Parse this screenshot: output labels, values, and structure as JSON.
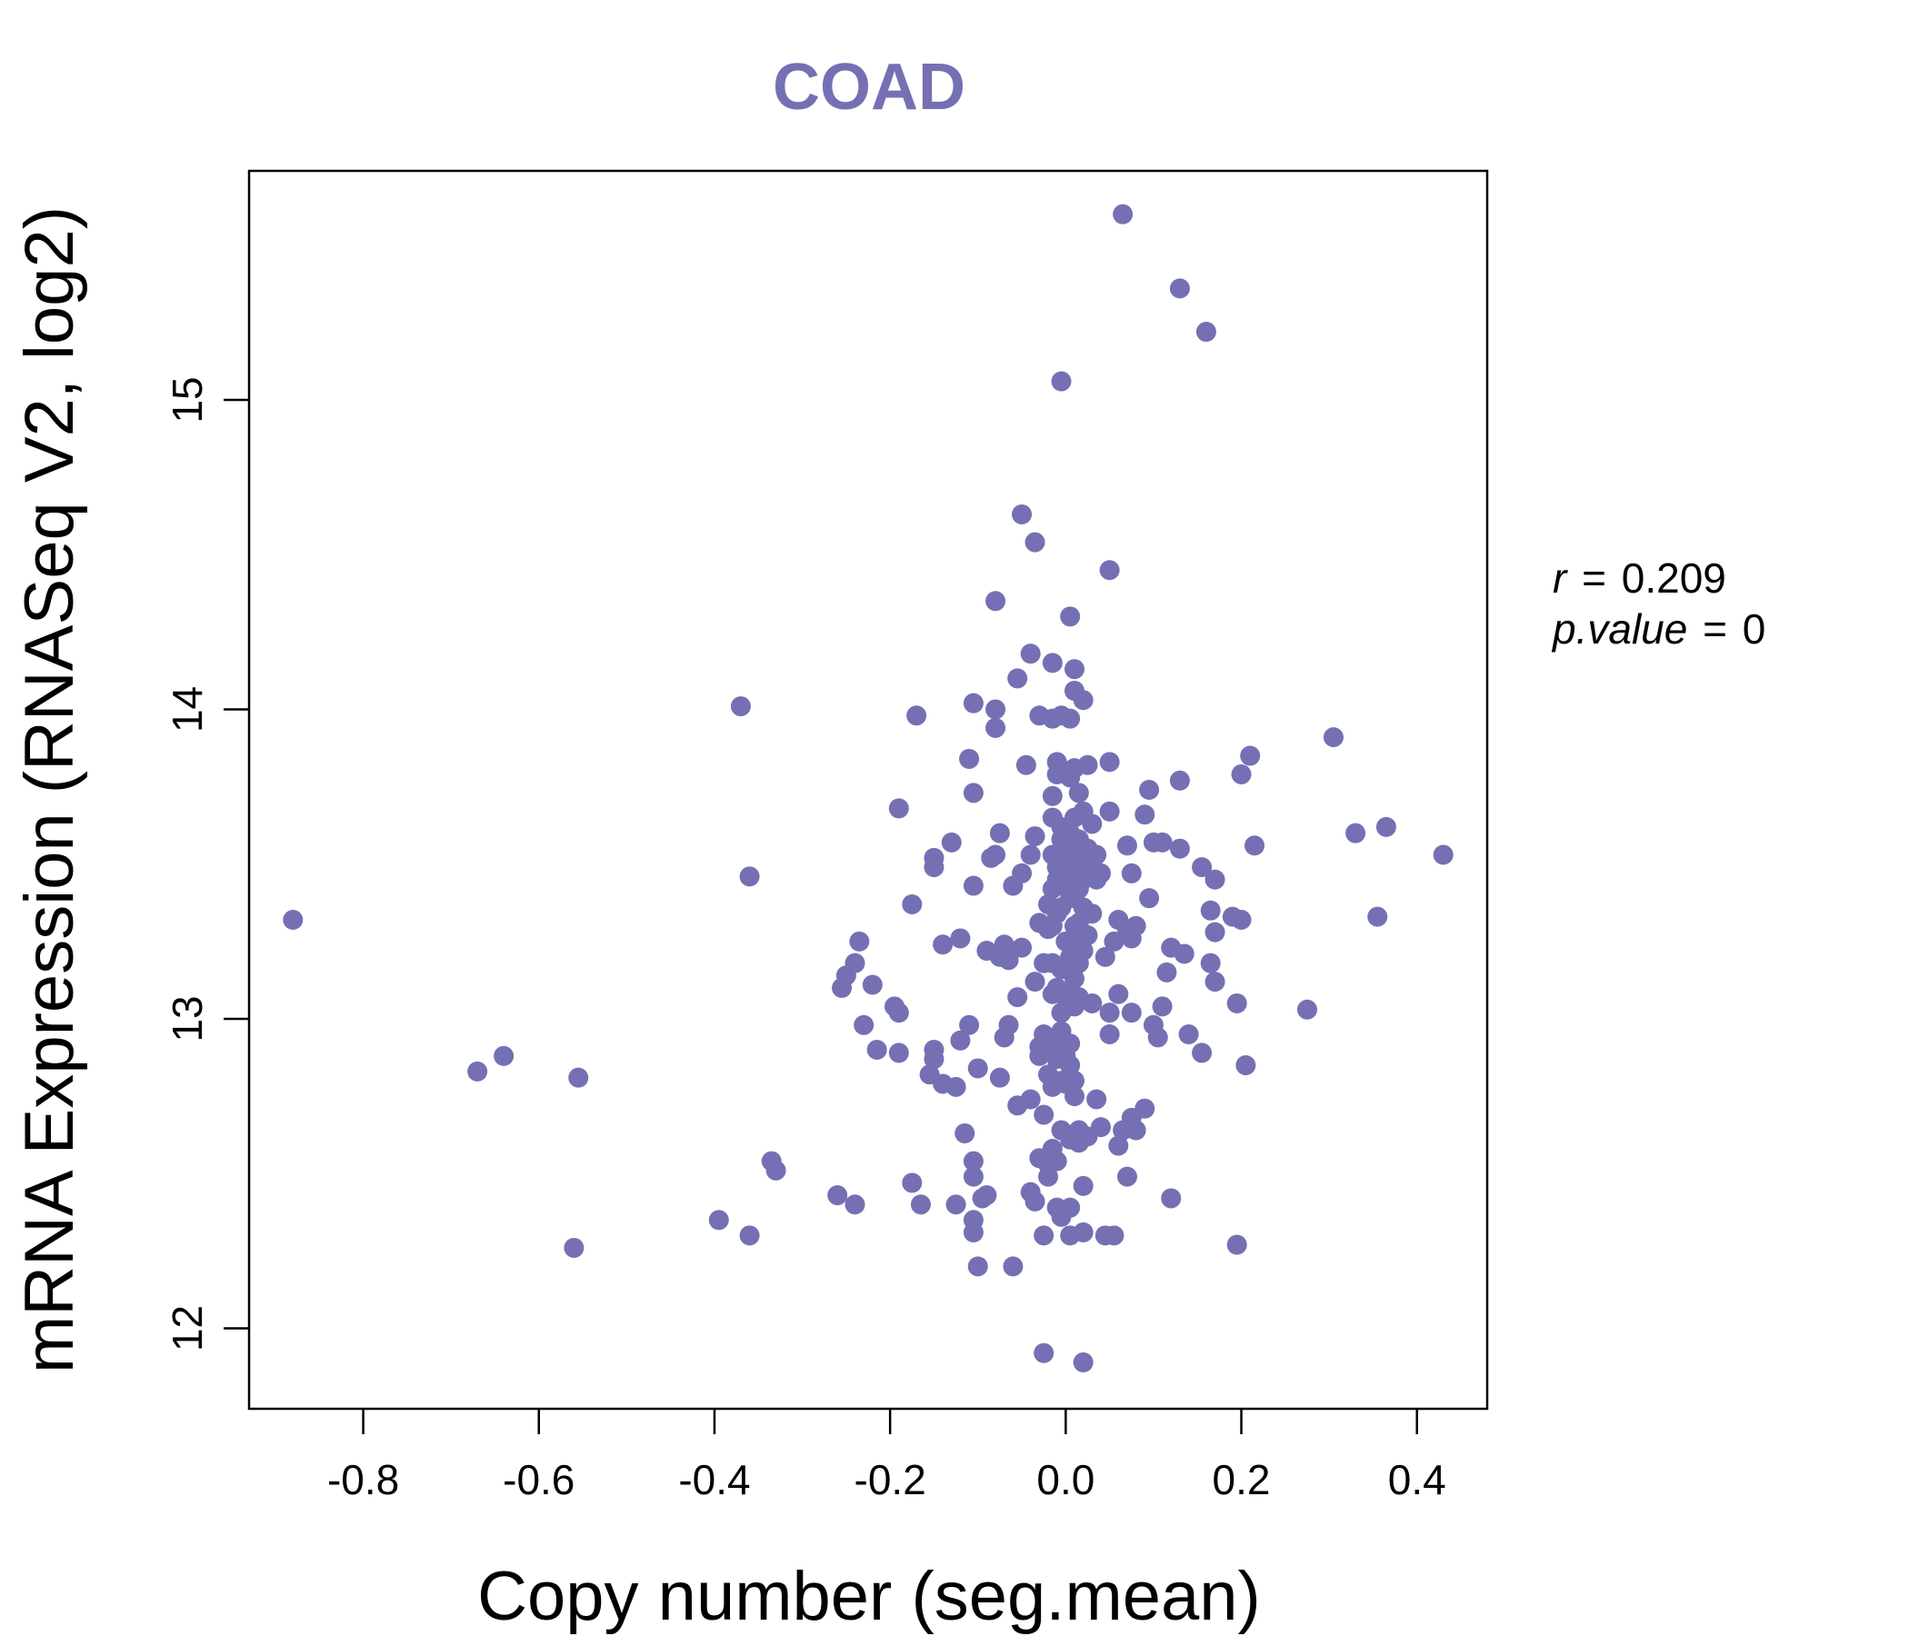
{
  "chart_data": {
    "type": "scatter",
    "title": "COAD",
    "xlabel": "Copy number (seg.mean)",
    "ylabel": "mRNA Expression (RNASeq V2, log2)",
    "xlim": [
      -0.93,
      0.48
    ],
    "ylim": [
      11.74,
      15.74
    ],
    "xticks": [
      -0.8,
      -0.6,
      -0.4,
      -0.2,
      0.0,
      0.2,
      0.4
    ],
    "xtick_labels": [
      "-0.8",
      "-0.6",
      "-0.4",
      "-0.2",
      "0.0",
      "0.2",
      "0.4"
    ],
    "yticks": [
      12,
      13,
      14,
      15
    ],
    "ytick_labels": [
      "12",
      "13",
      "14",
      "15"
    ],
    "grid": false,
    "point_color": "#7570b3",
    "stats": {
      "r_label": "r",
      "r_value": "0.209",
      "p_label": "p.value",
      "p_value": "0",
      "eq": "="
    },
    "points": [
      [
        -0.88,
        13.32
      ],
      [
        -0.67,
        12.83
      ],
      [
        -0.64,
        12.88
      ],
      [
        -0.555,
        12.81
      ],
      [
        -0.56,
        12.26
      ],
      [
        -0.37,
        14.01
      ],
      [
        -0.36,
        13.46
      ],
      [
        -0.395,
        12.35
      ],
      [
        -0.36,
        12.3
      ],
      [
        -0.335,
        12.54
      ],
      [
        -0.33,
        12.51
      ],
      [
        -0.26,
        12.43
      ],
      [
        -0.24,
        12.4
      ],
      [
        -0.255,
        13.1
      ],
      [
        -0.25,
        13.14
      ],
      [
        -0.24,
        13.18
      ],
      [
        -0.235,
        13.25
      ],
      [
        -0.22,
        13.11
      ],
      [
        -0.23,
        12.98
      ],
      [
        -0.215,
        12.9
      ],
      [
        -0.195,
        13.04
      ],
      [
        -0.19,
        13.02
      ],
      [
        -0.19,
        12.89
      ],
      [
        -0.19,
        13.68
      ],
      [
        -0.17,
        13.98
      ],
      [
        -0.175,
        13.37
      ],
      [
        -0.175,
        12.47
      ],
      [
        -0.165,
        12.4
      ],
      [
        -0.155,
        12.82
      ],
      [
        -0.15,
        12.87
      ],
      [
        -0.15,
        12.9
      ],
      [
        -0.14,
        12.79
      ],
      [
        -0.14,
        13.24
      ],
      [
        -0.15,
        13.49
      ],
      [
        -0.15,
        13.52
      ],
      [
        -0.13,
        13.57
      ],
      [
        -0.125,
        12.78
      ],
      [
        -0.125,
        12.4
      ],
      [
        -0.12,
        12.93
      ],
      [
        -0.12,
        13.26
      ],
      [
        -0.115,
        12.63
      ],
      [
        -0.11,
        12.98
      ],
      [
        -0.11,
        13.84
      ],
      [
        -0.105,
        14.02
      ],
      [
        -0.105,
        13.73
      ],
      [
        -0.105,
        13.43
      ],
      [
        -0.1,
        12.84
      ],
      [
        -0.105,
        12.54
      ],
      [
        -0.105,
        12.49
      ],
      [
        -0.105,
        12.35
      ],
      [
        -0.105,
        12.31
      ],
      [
        -0.1,
        12.2
      ],
      [
        -0.095,
        12.42
      ],
      [
        -0.09,
        12.43
      ],
      [
        -0.09,
        13.22
      ],
      [
        -0.085,
        13.52
      ],
      [
        -0.08,
        13.53
      ],
      [
        -0.08,
        14.0
      ],
      [
        -0.08,
        13.94
      ],
      [
        -0.08,
        14.35
      ],
      [
        -0.075,
        13.6
      ],
      [
        -0.075,
        13.2
      ],
      [
        -0.07,
        13.24
      ],
      [
        -0.065,
        13.19
      ],
      [
        -0.065,
        12.98
      ],
      [
        -0.07,
        12.94
      ],
      [
        -0.075,
        12.81
      ],
      [
        -0.06,
        13.43
      ],
      [
        -0.06,
        12.2
      ],
      [
        -0.055,
        14.1
      ],
      [
        -0.055,
        13.07
      ],
      [
        -0.055,
        12.72
      ],
      [
        -0.05,
        13.23
      ],
      [
        -0.05,
        13.47
      ],
      [
        -0.05,
        14.63
      ],
      [
        -0.045,
        13.82
      ],
      [
        -0.04,
        14.18
      ],
      [
        -0.04,
        13.53
      ],
      [
        -0.04,
        12.74
      ],
      [
        -0.04,
        12.44
      ],
      [
        -0.035,
        12.41
      ],
      [
        -0.035,
        13.12
      ],
      [
        -0.035,
        13.59
      ],
      [
        -0.035,
        14.54
      ],
      [
        -0.03,
        13.98
      ],
      [
        -0.03,
        12.91
      ],
      [
        -0.03,
        12.88
      ],
      [
        -0.03,
        12.55
      ],
      [
        -0.03,
        13.31
      ],
      [
        -0.025,
        13.18
      ],
      [
        -0.025,
        12.95
      ],
      [
        -0.025,
        12.69
      ],
      [
        -0.025,
        12.3
      ],
      [
        -0.025,
        11.92
      ],
      [
        -0.02,
        13.29
      ],
      [
        -0.02,
        13.37
      ],
      [
        -0.02,
        12.82
      ],
      [
        -0.02,
        12.49
      ],
      [
        -0.02,
        12.53
      ],
      [
        -0.015,
        14.15
      ],
      [
        -0.015,
        13.97
      ],
      [
        -0.015,
        13.72
      ],
      [
        -0.015,
        13.65
      ],
      [
        -0.015,
        13.53
      ],
      [
        -0.015,
        13.42
      ],
      [
        -0.015,
        13.3
      ],
      [
        -0.015,
        13.18
      ],
      [
        -0.015,
        13.08
      ],
      [
        -0.015,
        12.91
      ],
      [
        -0.015,
        12.78
      ],
      [
        -0.015,
        12.58
      ],
      [
        -0.01,
        13.83
      ],
      [
        -0.01,
        13.79
      ],
      [
        -0.01,
        13.53
      ],
      [
        -0.01,
        13.49
      ],
      [
        -0.01,
        13.45
      ],
      [
        -0.01,
        13.34
      ],
      [
        -0.01,
        13.1
      ],
      [
        -0.01,
        12.87
      ],
      [
        -0.01,
        12.54
      ],
      [
        -0.01,
        12.39
      ],
      [
        -0.005,
        13.98
      ],
      [
        -0.005,
        13.62
      ],
      [
        -0.005,
        13.58
      ],
      [
        -0.005,
        13.44
      ],
      [
        -0.005,
        13.36
      ],
      [
        -0.005,
        13.16
      ],
      [
        -0.005,
        13.02
      ],
      [
        -0.005,
        12.96
      ],
      [
        -0.005,
        12.8
      ],
      [
        -0.005,
        12.64
      ],
      [
        -0.005,
        12.36
      ],
      [
        -0.005,
        15.06
      ],
      [
        0.0,
        13.8
      ],
      [
        0.0,
        13.55
      ],
      [
        0.0,
        13.47
      ],
      [
        0.0,
        13.43
      ],
      [
        0.0,
        13.25
      ],
      [
        0.0,
        13.07
      ],
      [
        0.0,
        12.88
      ],
      [
        0.0,
        12.79
      ],
      [
        0.005,
        14.3
      ],
      [
        0.005,
        13.97
      ],
      [
        0.005,
        13.78
      ],
      [
        0.005,
        13.6
      ],
      [
        0.005,
        13.51
      ],
      [
        0.005,
        13.39
      ],
      [
        0.005,
        13.2
      ],
      [
        0.005,
        13.08
      ],
      [
        0.005,
        12.92
      ],
      [
        0.005,
        12.85
      ],
      [
        0.005,
        12.61
      ],
      [
        0.005,
        12.39
      ],
      [
        0.005,
        12.3
      ],
      [
        0.01,
        14.13
      ],
      [
        0.01,
        14.06
      ],
      [
        0.01,
        13.81
      ],
      [
        0.01,
        13.65
      ],
      [
        0.01,
        13.56
      ],
      [
        0.01,
        13.48
      ],
      [
        0.01,
        13.39
      ],
      [
        0.01,
        13.3
      ],
      [
        0.01,
        13.13
      ],
      [
        0.01,
        13.04
      ],
      [
        0.01,
        12.8
      ],
      [
        0.01,
        12.75
      ],
      [
        0.015,
        13.73
      ],
      [
        0.015,
        13.58
      ],
      [
        0.015,
        13.42
      ],
      [
        0.015,
        13.31
      ],
      [
        0.015,
        13.25
      ],
      [
        0.015,
        13.18
      ],
      [
        0.015,
        13.07
      ],
      [
        0.015,
        12.64
      ],
      [
        0.015,
        12.6
      ],
      [
        0.02,
        14.03
      ],
      [
        0.02,
        13.67
      ],
      [
        0.02,
        13.54
      ],
      [
        0.02,
        13.45
      ],
      [
        0.02,
        13.36
      ],
      [
        0.02,
        13.22
      ],
      [
        0.02,
        12.46
      ],
      [
        0.02,
        12.31
      ],
      [
        0.02,
        11.89
      ],
      [
        0.025,
        13.82
      ],
      [
        0.025,
        13.55
      ],
      [
        0.025,
        13.49
      ],
      [
        0.025,
        13.27
      ],
      [
        0.025,
        12.62
      ],
      [
        0.03,
        13.63
      ],
      [
        0.03,
        13.53
      ],
      [
        0.03,
        13.34
      ],
      [
        0.03,
        13.05
      ],
      [
        0.035,
        13.45
      ],
      [
        0.035,
        12.74
      ],
      [
        0.035,
        13.53
      ],
      [
        0.04,
        13.47
      ],
      [
        0.04,
        12.65
      ],
      [
        0.045,
        13.2
      ],
      [
        0.045,
        12.3
      ],
      [
        0.05,
        14.45
      ],
      [
        0.05,
        13.67
      ],
      [
        0.05,
        13.83
      ],
      [
        0.05,
        13.02
      ],
      [
        0.05,
        12.95
      ],
      [
        0.055,
        12.3
      ],
      [
        0.055,
        13.25
      ],
      [
        0.06,
        13.08
      ],
      [
        0.06,
        12.59
      ],
      [
        0.06,
        13.32
      ],
      [
        0.065,
        15.6
      ],
      [
        0.065,
        12.64
      ],
      [
        0.07,
        13.56
      ],
      [
        0.07,
        13.28
      ],
      [
        0.07,
        12.49
      ],
      [
        0.075,
        13.47
      ],
      [
        0.075,
        13.26
      ],
      [
        0.075,
        13.02
      ],
      [
        0.075,
        12.68
      ],
      [
        0.08,
        12.64
      ],
      [
        0.08,
        13.3
      ],
      [
        0.09,
        13.66
      ],
      [
        0.09,
        12.71
      ],
      [
        0.095,
        13.39
      ],
      [
        0.095,
        13.74
      ],
      [
        0.1,
        12.98
      ],
      [
        0.1,
        13.57
      ],
      [
        0.105,
        12.94
      ],
      [
        0.11,
        13.57
      ],
      [
        0.11,
        13.04
      ],
      [
        0.115,
        13.15
      ],
      [
        0.12,
        13.23
      ],
      [
        0.12,
        12.42
      ],
      [
        0.13,
        13.55
      ],
      [
        0.13,
        13.77
      ],
      [
        0.13,
        15.36
      ],
      [
        0.135,
        13.21
      ],
      [
        0.14,
        12.95
      ],
      [
        0.155,
        13.49
      ],
      [
        0.155,
        12.89
      ],
      [
        0.16,
        15.22
      ],
      [
        0.165,
        13.35
      ],
      [
        0.165,
        13.18
      ],
      [
        0.17,
        13.12
      ],
      [
        0.17,
        13.28
      ],
      [
        0.17,
        13.45
      ],
      [
        0.19,
        13.33
      ],
      [
        0.195,
        13.05
      ],
      [
        0.195,
        12.27
      ],
      [
        0.2,
        13.79
      ],
      [
        0.2,
        13.32
      ],
      [
        0.205,
        12.85
      ],
      [
        0.21,
        13.85
      ],
      [
        0.215,
        13.56
      ],
      [
        0.275,
        13.03
      ],
      [
        0.305,
        13.91
      ],
      [
        0.33,
        13.6
      ],
      [
        0.355,
        13.33
      ],
      [
        0.365,
        13.62
      ],
      [
        0.43,
        13.53
      ]
    ]
  }
}
